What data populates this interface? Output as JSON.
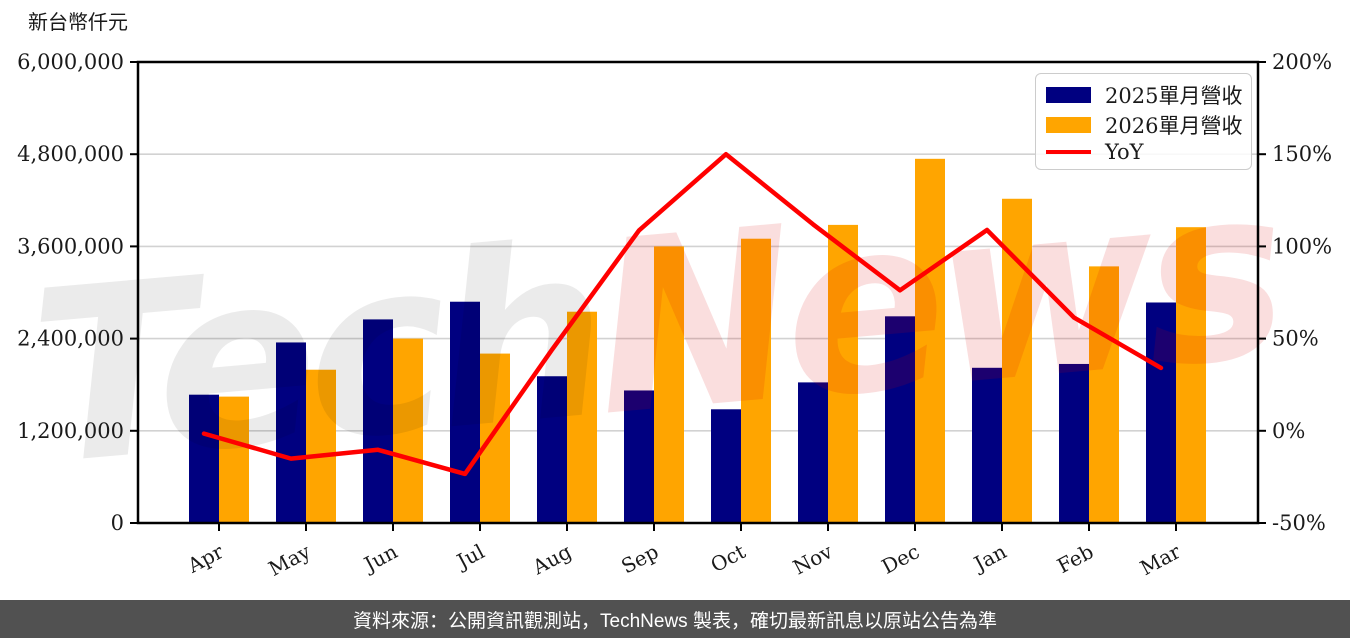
{
  "chart_data": {
    "type": "bar+line",
    "categories": [
      "Apr",
      "May",
      "Jun",
      "Jul",
      "Aug",
      "Sep",
      "Oct",
      "Nov",
      "Dec",
      "Jan",
      "Feb",
      "Mar"
    ],
    "series": [
      {
        "name": "2025單月營收",
        "type": "bar",
        "axis": "left",
        "color": "#000080",
        "values": [
          1670000,
          2350000,
          2650000,
          2880000,
          1910000,
          1725000,
          1480000,
          1830000,
          2690000,
          2020000,
          2070000,
          2870000
        ]
      },
      {
        "name": "2026單月營收",
        "type": "bar",
        "axis": "left",
        "color": "#FFA500",
        "values": [
          1645000,
          1995000,
          2400000,
          2205000,
          2750000,
          3600000,
          3700000,
          3880000,
          4740000,
          4220000,
          3340000,
          3850000
        ]
      },
      {
        "name": "YoY",
        "type": "line",
        "axis": "right",
        "color": "#FF0000",
        "values_pct": [
          -1.5,
          -15.1,
          -10.3,
          -23.4,
          44.0,
          108.7,
          150.0,
          112.0,
          76.2,
          108.9,
          61.4,
          34.1
        ]
      }
    ],
    "left_axis": {
      "title": "新台幣仟元",
      "tick_labels": [
        "6,000,000",
        "4,800,000",
        "3,600,000",
        "2,400,000",
        "1,200,000",
        "0"
      ],
      "min": 0,
      "max": 6000000
    },
    "right_axis": {
      "tick_labels": [
        "200%",
        "150%",
        "100%",
        "50%",
        "0%",
        "-50%"
      ],
      "min": -50,
      "max": 200
    },
    "grid": true,
    "legend_position": "top-right",
    "watermark": {
      "part1": "Tech",
      "part2": "News"
    }
  },
  "footer": {
    "text": "資料來源：公開資訊觀測站，TechNews 製表，確切最新訊息以原站公告為準",
    "bg": "#515151",
    "fg": "#ffffff"
  },
  "colors": {
    "background": "#ffffff",
    "gridline": "#d2d2d2",
    "axis": "#000000",
    "tick_label": "#1a1a1a",
    "watermark_gray": "rgba(0,0,0,0.08)",
    "watermark_pink": "rgba(213,0,0,0.13)"
  }
}
